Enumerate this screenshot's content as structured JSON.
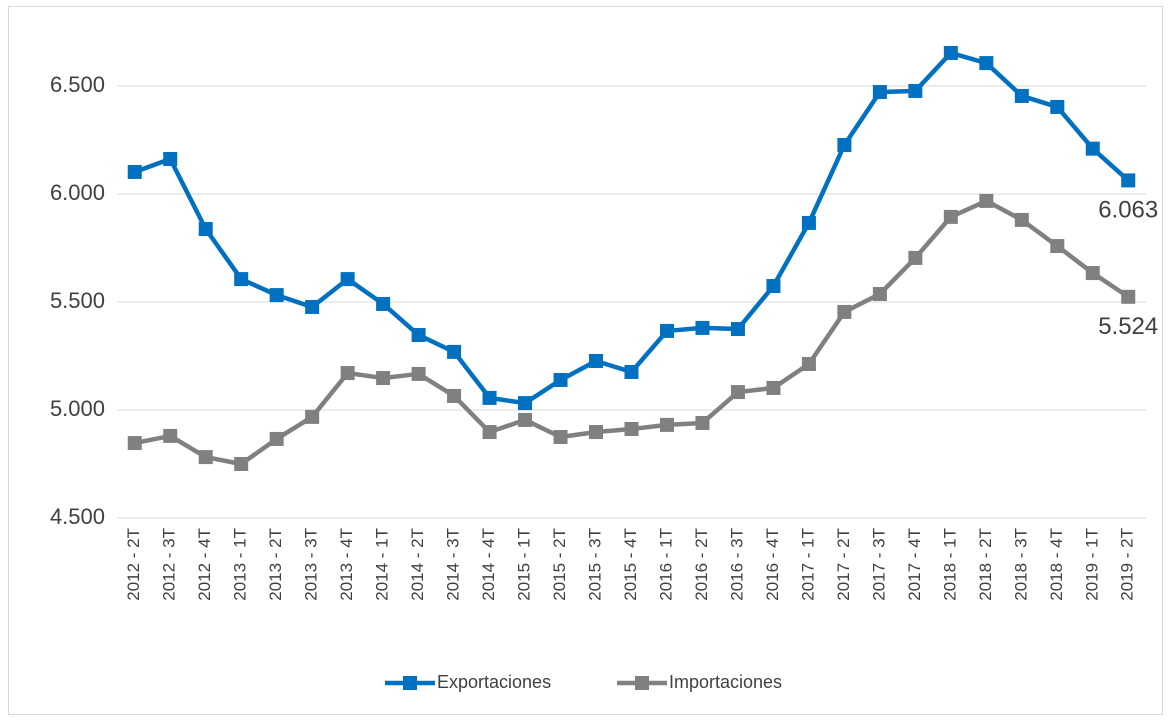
{
  "chart_data": {
    "type": "line",
    "categories": [
      "2012 - 2T",
      "2012 - 3T",
      "2012 - 4T",
      "2013 - 1T",
      "2013 - 2T",
      "2013 - 3T",
      "2013 - 4T",
      "2014 - 1T",
      "2014 - 2T",
      "2014 - 3T",
      "2014 - 4T",
      "2015 - 1T",
      "2015 - 2T",
      "2015 - 3T",
      "2015 - 4T",
      "2016 - 1T",
      "2016 - 2T",
      "2016 - 3T",
      "2016 - 4T",
      "2017 - 1T",
      "2017 - 2T",
      "2017 - 3T",
      "2017 - 4T",
      "2018 - 1T",
      "2018 - 2T",
      "2018 - 3T",
      "2018 - 4T",
      "2019 - 1T",
      "2019 - 2T"
    ],
    "series": [
      {
        "name": "Exportaciones",
        "color": "#0070c0",
        "values": [
          6102,
          6162,
          5838,
          5606,
          5532,
          5477,
          5606,
          5491,
          5347,
          5269,
          5056,
          5032,
          5139,
          5227,
          5176,
          5366,
          5380,
          5375,
          5574,
          5866,
          6227,
          6472,
          6477,
          6653,
          6606,
          6454,
          6403,
          6210,
          6063
        ],
        "value_labels": [
          null,
          null,
          null,
          null,
          null,
          null,
          null,
          null,
          null,
          null,
          null,
          null,
          null,
          null,
          null,
          null,
          null,
          null,
          null,
          null,
          null,
          null,
          null,
          null,
          null,
          null,
          null,
          null,
          "6.063"
        ]
      },
      {
        "name": "Importaciones",
        "color": "#808080",
        "values": [
          4847,
          4880,
          4782,
          4750,
          4866,
          4968,
          5171,
          5148,
          5167,
          5065,
          4898,
          4954,
          4875,
          4898,
          4912,
          4931,
          4940,
          5083,
          5102,
          5213,
          5454,
          5537,
          5704,
          5894,
          5968,
          5880,
          5759,
          5634,
          5524
        ],
        "value_labels": [
          null,
          null,
          null,
          null,
          null,
          null,
          null,
          null,
          null,
          null,
          null,
          null,
          null,
          null,
          null,
          null,
          null,
          null,
          null,
          null,
          null,
          null,
          null,
          null,
          null,
          null,
          null,
          null,
          "5.524"
        ]
      }
    ],
    "ylim": [
      4500,
      6750
    ],
    "yticks": [
      {
        "value": 4500,
        "label": "4.500"
      },
      {
        "value": 5000,
        "label": "5.000"
      },
      {
        "value": 5500,
        "label": "5.500"
      },
      {
        "value": 6000,
        "label": "6.000"
      },
      {
        "value": 6500,
        "label": "6.500"
      }
    ],
    "grid": true,
    "legend": "bottom"
  }
}
